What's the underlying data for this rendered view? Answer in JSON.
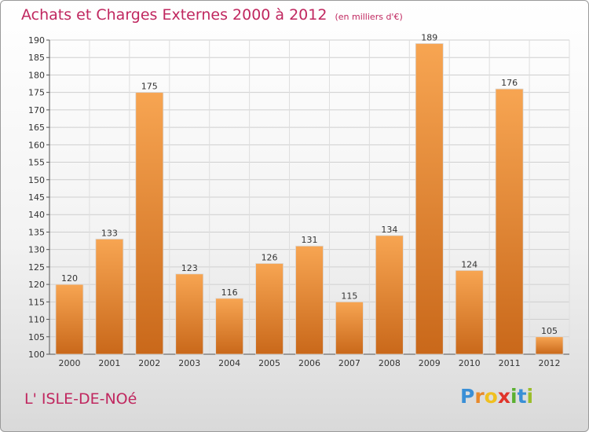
{
  "chart_data": {
    "type": "bar",
    "title": "Achats et Charges Externes 2000 à 2012",
    "unit_label": "(en milliers d'€)",
    "categories": [
      "2000",
      "2001",
      "2002",
      "2003",
      "2004",
      "2005",
      "2006",
      "2007",
      "2008",
      "2009",
      "2010",
      "2011",
      "2012"
    ],
    "values": [
      120,
      133,
      175,
      123,
      116,
      126,
      131,
      115,
      134,
      189,
      124,
      176,
      105
    ],
    "ylim": [
      100,
      190
    ],
    "yticks": [
      100,
      105,
      110,
      115,
      120,
      125,
      130,
      135,
      140,
      145,
      150,
      155,
      160,
      165,
      170,
      175,
      180,
      185,
      190
    ],
    "grid": true,
    "bar_color": "#e8892b"
  },
  "commune": "L' ISLE-DE-NOé",
  "logo": {
    "letters": [
      "P",
      "r",
      "o",
      "x",
      "i",
      "t",
      "i"
    ]
  }
}
